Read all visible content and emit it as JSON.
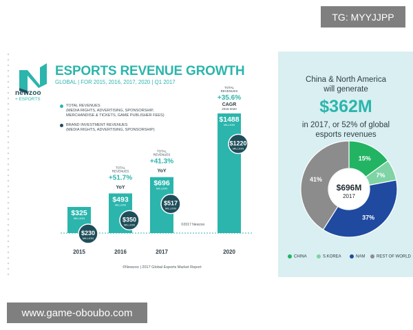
{
  "watermarks": {
    "top_right": "TG: MYYJJPP",
    "bottom_left": "www.game-oboubo.com"
  },
  "brand": {
    "name": "newzoo",
    "sub": "+ ESPORTS",
    "color": "#2bb5ac",
    "dark_color": "#1f4e5a"
  },
  "left_chart": {
    "title": "ESPORTS REVENUE GROWTH",
    "subtitle": "GLOBAL | FOR 2015, 2016, 2017, 2020 | Q1 2017",
    "legend": [
      {
        "label_lines": [
          "TOTAL REVENUES",
          "(MEDIA RIGHTS, ADVERTISING, SPONSORSHIP,",
          "MERCHANDISE & TICKETS, GAME PUBLISHER FEES)"
        ],
        "color": "#2bb5ac"
      },
      {
        "label_lines": [
          "BRAND INVESTMENT REVENUES",
          "(MEDIA RIGHTS, ADVERTISING, SPONSORSHIP)"
        ],
        "color": "#1f4e5a"
      }
    ],
    "copyright_inline": "©2017 Newzoo",
    "footnote": "©Newzoo | 2017 Global Esports Market Report"
  },
  "chart_data": [
    {
      "type": "bar",
      "title": "ESPORTS REVENUE GROWTH",
      "subtitle": "GLOBAL | FOR 2015, 2016, 2017, 2020 | Q1 2017",
      "categories": [
        "2015",
        "2016",
        "2017",
        "2020"
      ],
      "series": [
        {
          "name": "TOTAL REVENUES",
          "values": [
            325,
            493,
            696,
            1488
          ],
          "labels": [
            "$325",
            "$493",
            "$696",
            "$1488"
          ],
          "unit": "MILLION"
        },
        {
          "name": "BRAND INVESTMENT REVENUES",
          "values": [
            230,
            350,
            517,
            1220
          ],
          "labels": [
            "$230",
            "$350",
            "$517",
            "$1220"
          ],
          "unit": "MILLION"
        }
      ],
      "growth_annotations": [
        null,
        {
          "top": "TOTAL",
          "mid": "REVENUES",
          "value": "+51.7%",
          "tag": "YoY",
          "extra": ""
        },
        {
          "top": "TOTAL",
          "mid": "REVENUES",
          "value": "+41.3%",
          "tag": "YoY",
          "extra": ""
        },
        {
          "top": "TOTAL",
          "mid": "REVENUES",
          "value": "+35.6%",
          "tag": "CAGR",
          "extra": "2015-2020"
        }
      ],
      "ylim": [
        0,
        1600
      ]
    },
    {
      "type": "pie",
      "categories": [
        "CHINA",
        "S.KOREA",
        "NAM",
        "REST OF WORLD"
      ],
      "values": [
        15,
        7,
        37,
        41
      ],
      "labels": [
        "15%",
        "7%",
        "37%",
        "41%"
      ],
      "colors": [
        "#22b463",
        "#7fd3a4",
        "#204aa0",
        "#8c8c8c"
      ],
      "center_value": "$696M",
      "center_label": "2017"
    }
  ],
  "right_panel": {
    "line1": "China & North America",
    "line2": "will generate",
    "big": "$362M",
    "line3": "in 2017, or 52% of global",
    "line4": "esports revenues",
    "legend": [
      "CHINA",
      "S.KOREA",
      "NAM",
      "REST OF WORLD"
    ]
  }
}
